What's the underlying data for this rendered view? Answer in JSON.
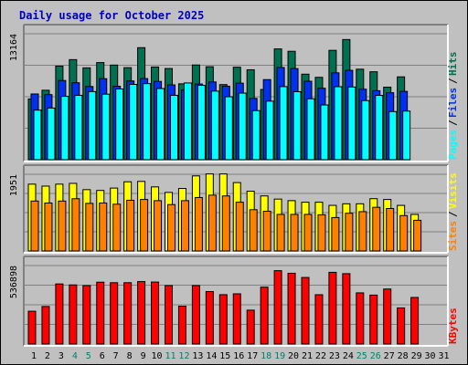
{
  "chart_data": {
    "type": "bar",
    "title": "Daily usage for October 2025",
    "x": [
      "1",
      "2",
      "3",
      "4",
      "5",
      "6",
      "7",
      "8",
      "9",
      "10",
      "11",
      "12",
      "13",
      "14",
      "15",
      "16",
      "17",
      "18",
      "19",
      "20",
      "21",
      "22",
      "23",
      "24",
      "25",
      "26",
      "27",
      "28",
      "29",
      "30",
      "31"
    ],
    "weekend_days": [
      "4",
      "5",
      "11",
      "12",
      "18",
      "19",
      "25",
      "26"
    ],
    "colors": {
      "background": "#c0c0c0",
      "title": "#0000c0",
      "hits": "#007050",
      "files": "#0030f0",
      "pages": "#00ffff",
      "visits": "#ffff00",
      "sites": "#ff8000",
      "kbytes": "#ff0000",
      "weekend_label": "#00806b",
      "weekday_label": "#000000",
      "gridline": "#808080"
    },
    "panels": [
      {
        "id": "hits-files-pages",
        "scale_max": 13164,
        "scale_label": "13164",
        "legend": [
          {
            "label": "Hits",
            "color": "#007050"
          },
          {
            "label": "Files",
            "color": "#0030f0"
          },
          {
            "label": "Pages",
            "color": "#00ffff"
          }
        ],
        "series": [
          {
            "name": "Hits",
            "values": [
              6350,
              7260,
              9780,
              10460,
              9600,
              10150,
              9890,
              9620,
              11710,
              9690,
              9530,
              7930,
              9900,
              9720,
              7850,
              9670,
              9400,
              7340,
              11580,
              11330,
              8940,
              8610,
              11430,
              12560,
              9460,
              9190,
              7580,
              8660,
              null,
              null,
              null
            ]
          },
          {
            "name": "Files",
            "values": [
              6870,
              6800,
              8280,
              8040,
              7650,
              8470,
              7680,
              8230,
              8480,
              8180,
              7820,
              7280,
              7910,
              8130,
              7680,
              8000,
              6410,
              8370,
              9640,
              9520,
              8200,
              7470,
              9080,
              9340,
              7370,
              7210,
              7000,
              7140,
              null,
              null,
              null
            ]
          },
          {
            "name": "Pages",
            "values": [
              5180,
              5400,
              6620,
              6730,
              7120,
              6850,
              7390,
              7870,
              7950,
              7440,
              6730,
              8020,
              7770,
              7170,
              6580,
              6960,
              5130,
              6120,
              7640,
              7110,
              6370,
              5720,
              7630,
              7600,
              6180,
              6720,
              5030,
              5080,
              null,
              null,
              null
            ]
          }
        ]
      },
      {
        "id": "visits-sites",
        "scale_max": 1951,
        "scale_label": "1951",
        "legend": [
          {
            "label": "Visits",
            "color": "#ffff00"
          },
          {
            "label": "Sites",
            "color": "#ff8000"
          }
        ],
        "series": [
          {
            "name": "Visits",
            "values": [
              1700,
              1650,
              1700,
              1720,
              1560,
              1540,
              1600,
              1760,
              1770,
              1630,
              1490,
              1590,
              1910,
              1960,
              1960,
              1740,
              1520,
              1400,
              1320,
              1280,
              1240,
              1240,
              1160,
              1200,
              1200,
              1330,
              1310,
              1160,
              930,
              null,
              null
            ]
          },
          {
            "name": "Sites",
            "values": [
              1270,
              1220,
              1270,
              1330,
              1210,
              1220,
              1190,
              1290,
              1310,
              1280,
              1180,
              1280,
              1360,
              1420,
              1400,
              1240,
              1050,
              1010,
              930,
              930,
              930,
              920,
              850,
              960,
              1000,
              1110,
              1080,
              900,
              780,
              null,
              null
            ]
          }
        ]
      },
      {
        "id": "kbytes",
        "scale_max": 536898,
        "scale_label": "536898",
        "legend": [
          {
            "label": "KBytes",
            "color": "#ff0000"
          }
        ],
        "series": [
          {
            "name": "KBytes",
            "values": [
              224300,
              256800,
              410950,
              404300,
              399700,
              423000,
              419500,
              419500,
              427100,
              424000,
              399700,
              258900,
              400000,
              358800,
              337600,
              343500,
              231700,
              389200,
              501900,
              484100,
              455300,
              337300,
              490600,
              481400,
              350000,
              334700,
              376300,
              247100,
              318600,
              null,
              null
            ]
          }
        ]
      }
    ]
  }
}
